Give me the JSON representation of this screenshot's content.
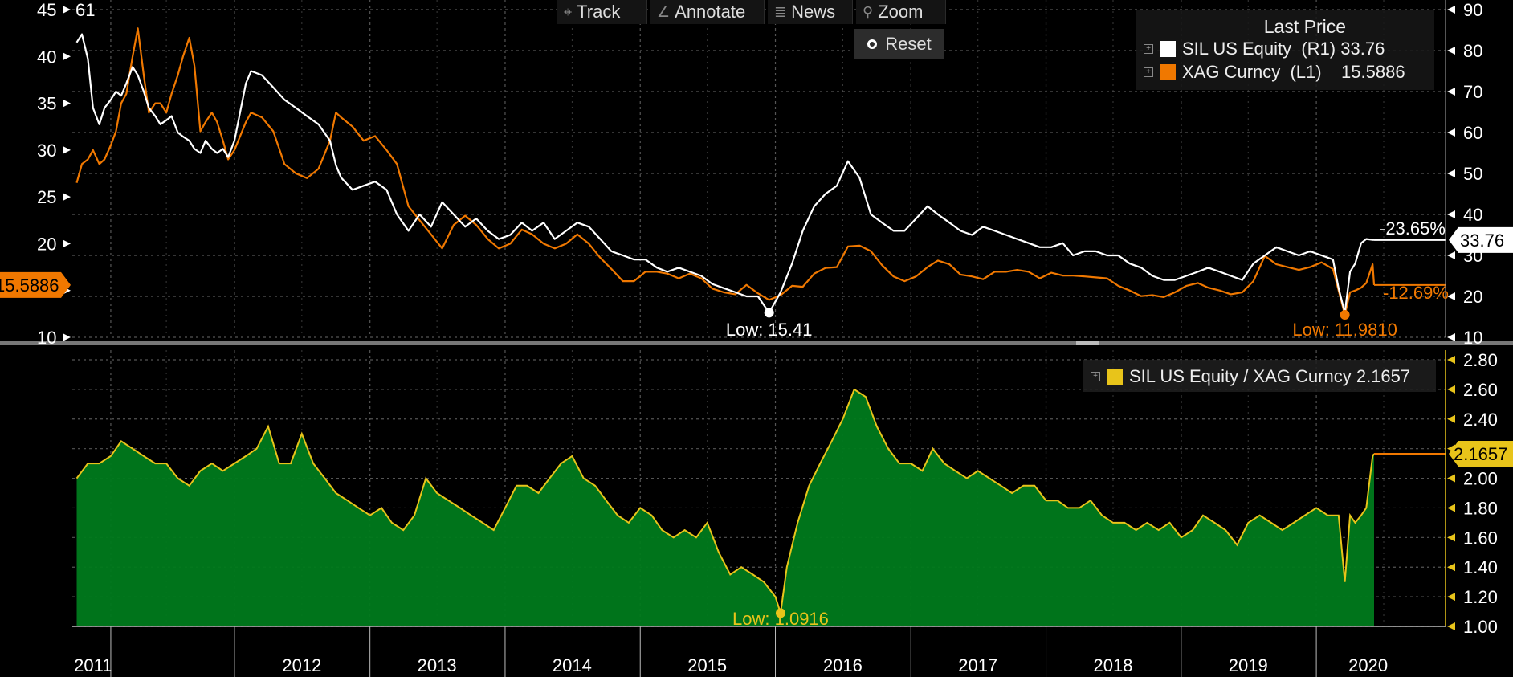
{
  "toolbar": {
    "track": "Track",
    "annotate": "Annotate",
    "news": "News",
    "zoom": "Zoom",
    "reset": "Reset"
  },
  "legend_top": {
    "header": "Last Price",
    "sil": "SIL US Equity  (R1) 33.76",
    "xag": "XAG Curncy  (L1)    15.5886"
  },
  "legend_bottom": {
    "ratio": "SIL US Equity / XAG Curncy 2.1657"
  },
  "colors": {
    "sil": "#ffffff",
    "xag": "#f07800",
    "ratio_line": "#e8c41a",
    "ratio_fill": "#007a1c",
    "grid": "#555555"
  },
  "chart_data": [
    {
      "type": "line",
      "x": [
        "2010-11-01",
        "2010-11-15",
        "2010-12-01",
        "2010-12-15",
        "2011-01-01",
        "2011-01-15",
        "2011-02-01",
        "2011-02-15",
        "2011-03-01",
        "2011-03-15",
        "2011-04-01",
        "2011-04-15",
        "2011-05-01",
        "2011-05-15",
        "2011-06-01",
        "2011-06-15",
        "2011-07-01",
        "2011-07-15",
        "2011-08-01",
        "2011-08-15",
        "2011-09-01",
        "2011-09-15",
        "2011-10-01",
        "2011-10-15",
        "2011-11-01",
        "2011-11-15",
        "2011-12-01",
        "2011-12-15",
        "2012-01-01",
        "2012-02-01",
        "2012-02-15",
        "2012-03-15",
        "2012-04-15",
        "2012-05-15",
        "2012-06-15",
        "2012-07-15",
        "2012-08-15",
        "2012-09-15",
        "2012-10-01",
        "2012-10-15",
        "2012-11-15",
        "2012-12-15",
        "2013-01-15",
        "2013-02-15",
        "2013-03-15",
        "2013-04-15",
        "2013-05-15",
        "2013-06-15",
        "2013-07-15",
        "2013-08-15",
        "2013-09-15",
        "2013-10-15",
        "2013-11-15",
        "2013-12-15",
        "2014-01-15",
        "2014-02-15",
        "2014-03-15",
        "2014-04-15",
        "2014-05-15",
        "2014-06-15",
        "2014-07-15",
        "2014-08-15",
        "2014-09-15",
        "2014-10-15",
        "2014-11-15",
        "2014-12-15",
        "2015-01-15",
        "2015-02-15",
        "2015-03-15",
        "2015-04-15",
        "2015-05-15",
        "2015-06-15",
        "2015-07-15",
        "2015-08-15",
        "2015-09-15",
        "2015-10-15",
        "2015-11-15",
        "2015-12-15",
        "2016-01-15",
        "2016-02-15",
        "2016-03-15",
        "2016-04-15",
        "2016-05-15",
        "2016-06-15",
        "2016-07-15",
        "2016-08-15",
        "2016-09-15",
        "2016-10-15",
        "2016-11-15",
        "2016-12-15",
        "2017-01-15",
        "2017-02-15",
        "2017-03-15",
        "2017-04-15",
        "2017-05-15",
        "2017-06-15",
        "2017-07-15",
        "2017-08-15",
        "2017-09-15",
        "2017-10-15",
        "2017-11-15",
        "2017-12-15",
        "2018-01-15",
        "2018-02-15",
        "2018-03-15",
        "2018-04-15",
        "2018-05-15",
        "2018-06-15",
        "2018-07-15",
        "2018-08-15",
        "2018-09-15",
        "2018-10-15",
        "2018-11-15",
        "2018-12-15",
        "2019-01-15",
        "2019-02-15",
        "2019-03-15",
        "2019-04-15",
        "2019-05-15",
        "2019-06-15",
        "2019-07-15",
        "2019-08-15",
        "2019-09-15",
        "2019-10-15",
        "2019-11-15",
        "2019-12-15",
        "2020-01-15",
        "2020-02-15",
        "2020-03-01",
        "2020-03-18",
        "2020-04-01",
        "2020-04-15",
        "2020-05-01",
        "2020-05-15",
        "2020-06-01",
        "2020-06-05"
      ],
      "series": [
        {
          "name": "SIL US Equity",
          "axis": "right",
          "values": [
            82,
            84,
            78,
            66,
            62,
            66,
            68,
            70,
            69,
            72,
            76,
            74,
            70,
            66,
            64,
            62,
            63,
            64,
            60,
            59,
            58,
            56,
            55,
            58,
            56,
            55,
            56,
            54,
            58,
            72,
            75,
            74,
            71,
            68,
            66,
            64,
            62,
            58,
            52,
            49,
            46,
            47,
            48,
            46,
            40,
            36,
            40,
            37,
            43,
            40,
            37,
            39,
            36,
            34,
            35,
            38,
            36,
            38,
            34,
            36,
            38,
            37,
            34,
            31,
            30,
            29,
            29,
            27,
            26,
            27,
            26,
            25,
            23,
            22,
            21,
            20,
            20,
            16,
            21,
            28,
            36,
            42,
            45,
            47,
            53,
            49,
            40,
            38,
            36,
            36,
            39,
            42,
            40,
            38,
            36,
            35,
            37,
            36,
            35,
            34,
            33,
            32,
            32,
            33,
            30,
            31,
            31,
            30,
            30,
            28,
            27,
            25,
            24,
            24,
            25,
            26,
            27,
            26,
            25,
            24,
            28,
            30,
            32,
            31,
            30,
            31,
            30,
            29,
            22,
            16,
            26,
            28,
            33,
            34,
            33.8,
            33.76
          ]
        },
        {
          "name": "XAG Curncy",
          "axis": "left",
          "values": [
            26.5,
            28.5,
            29,
            30,
            28.5,
            29,
            30.5,
            32,
            35,
            36,
            40,
            43,
            38,
            34,
            35,
            35,
            34,
            36,
            38,
            40,
            42,
            39,
            32,
            33,
            34,
            33,
            31,
            29,
            30,
            33,
            34,
            33.5,
            32,
            28.5,
            27.5,
            27,
            28,
            31,
            34,
            33.5,
            32.5,
            31,
            31.5,
            30,
            28.5,
            24,
            22.5,
            21,
            19.5,
            22,
            23,
            22,
            20.5,
            19.5,
            20,
            21.5,
            21,
            20,
            19.5,
            20,
            21,
            20,
            18.5,
            17.3,
            16,
            16,
            17,
            17,
            16.8,
            16.3,
            16.8,
            16.3,
            15.2,
            14.8,
            14.6,
            15.6,
            14.7,
            14,
            14.5,
            15.5,
            15.4,
            16.8,
            17.4,
            17.5,
            19.7,
            19.8,
            19.2,
            17.7,
            16.5,
            16,
            16.5,
            17.5,
            18.2,
            17.8,
            16.7,
            16.5,
            16.2,
            17,
            17,
            17.2,
            17,
            16.3,
            16.9,
            16.6,
            16.6,
            16.5,
            16.4,
            16.3,
            15.5,
            15,
            14.4,
            14.5,
            14.3,
            14.8,
            15.5,
            15.8,
            15.3,
            15,
            14.6,
            14.8,
            16,
            18.7,
            17.8,
            17.5,
            17.2,
            17.5,
            18,
            17.3,
            15,
            12.4,
            14.8,
            15,
            15.3,
            15.8,
            17.8,
            15.5886
          ]
        }
      ],
      "ylim_left": [
        10,
        45
      ],
      "ylim_right": [
        10,
        90
      ],
      "left_ticks": [
        10,
        15,
        20,
        25,
        30,
        35,
        40,
        45
      ],
      "right_ticks": [
        10,
        20,
        30,
        40,
        50,
        60,
        70,
        80,
        90
      ],
      "x_labels": [
        "2011",
        "2012",
        "2013",
        "2014",
        "2015",
        "2016",
        "2017",
        "2018",
        "2019",
        "2020"
      ],
      "annotations": {
        "low_sil": "Low: 15.41",
        "low_xag": "Low: 11.9810",
        "pct_sil": "-23.65%",
        "pct_xag": "-12.69%",
        "last_sil": "33.76",
        "last_xag": "15.5886",
        "top_left": "61"
      },
      "grid": true,
      "legend": "top-right"
    },
    {
      "type": "area",
      "x": [
        "2010-11-01",
        "2010-12-01",
        "2011-01-01",
        "2011-02-01",
        "2011-03-01",
        "2011-04-01",
        "2011-05-01",
        "2011-06-01",
        "2011-07-01",
        "2011-08-01",
        "2011-09-01",
        "2011-10-01",
        "2011-11-01",
        "2011-12-01",
        "2012-01-01",
        "2012-02-01",
        "2012-03-01",
        "2012-04-01",
        "2012-05-01",
        "2012-06-01",
        "2012-07-01",
        "2012-08-01",
        "2012-09-01",
        "2012-10-01",
        "2012-11-01",
        "2012-12-01",
        "2013-01-01",
        "2013-02-01",
        "2013-03-01",
        "2013-04-01",
        "2013-05-01",
        "2013-06-01",
        "2013-07-01",
        "2013-08-01",
        "2013-09-01",
        "2013-10-01",
        "2013-11-01",
        "2013-12-01",
        "2014-01-01",
        "2014-02-01",
        "2014-03-01",
        "2014-04-01",
        "2014-05-01",
        "2014-06-01",
        "2014-07-01",
        "2014-08-01",
        "2014-09-01",
        "2014-10-01",
        "2014-11-01",
        "2014-12-01",
        "2015-01-01",
        "2015-02-01",
        "2015-03-01",
        "2015-04-01",
        "2015-05-01",
        "2015-06-01",
        "2015-07-01",
        "2015-08-01",
        "2015-09-01",
        "2015-10-01",
        "2015-11-01",
        "2015-12-01",
        "2016-01-01",
        "2016-01-15",
        "2016-02-01",
        "2016-03-01",
        "2016-04-01",
        "2016-05-01",
        "2016-06-01",
        "2016-07-01",
        "2016-08-01",
        "2016-09-01",
        "2016-10-01",
        "2016-11-01",
        "2016-12-01",
        "2017-01-01",
        "2017-02-01",
        "2017-03-01",
        "2017-04-01",
        "2017-05-01",
        "2017-06-01",
        "2017-07-01",
        "2017-08-01",
        "2017-09-01",
        "2017-10-01",
        "2017-11-01",
        "2017-12-01",
        "2018-01-01",
        "2018-02-01",
        "2018-03-01",
        "2018-04-01",
        "2018-05-01",
        "2018-06-01",
        "2018-07-01",
        "2018-08-01",
        "2018-09-01",
        "2018-10-01",
        "2018-11-01",
        "2018-12-01",
        "2019-01-01",
        "2019-02-01",
        "2019-03-01",
        "2019-04-01",
        "2019-05-01",
        "2019-06-01",
        "2019-07-01",
        "2019-08-01",
        "2019-09-01",
        "2019-10-01",
        "2019-11-01",
        "2019-12-01",
        "2020-01-01",
        "2020-02-01",
        "2020-03-01",
        "2020-03-18",
        "2020-04-01",
        "2020-04-15",
        "2020-05-01",
        "2020-05-15",
        "2020-06-01",
        "2020-06-05"
      ],
      "series": [
        {
          "name": "SIL US Equity / XAG Curncy",
          "values": [
            2.0,
            2.1,
            2.1,
            2.15,
            2.25,
            2.2,
            2.15,
            2.1,
            2.1,
            2.0,
            1.95,
            2.05,
            2.1,
            2.05,
            2.1,
            2.15,
            2.2,
            2.35,
            2.1,
            2.1,
            2.3,
            2.1,
            2.0,
            1.9,
            1.85,
            1.8,
            1.75,
            1.8,
            1.7,
            1.65,
            1.75,
            2.0,
            1.9,
            1.85,
            1.8,
            1.75,
            1.7,
            1.65,
            1.8,
            1.95,
            1.95,
            1.9,
            2.0,
            2.1,
            2.15,
            2.0,
            1.95,
            1.85,
            1.75,
            1.7,
            1.8,
            1.75,
            1.65,
            1.6,
            1.65,
            1.6,
            1.7,
            1.5,
            1.35,
            1.4,
            1.35,
            1.3,
            1.2,
            1.09,
            1.4,
            1.7,
            1.95,
            2.1,
            2.25,
            2.4,
            2.6,
            2.55,
            2.35,
            2.2,
            2.1,
            2.1,
            2.05,
            2.2,
            2.1,
            2.05,
            2.0,
            2.05,
            2.0,
            1.95,
            1.9,
            1.95,
            1.95,
            1.85,
            1.85,
            1.8,
            1.8,
            1.85,
            1.75,
            1.7,
            1.7,
            1.65,
            1.7,
            1.65,
            1.7,
            1.6,
            1.65,
            1.75,
            1.7,
            1.65,
            1.55,
            1.7,
            1.75,
            1.7,
            1.65,
            1.7,
            1.75,
            1.8,
            1.75,
            1.75,
            1.3,
            1.75,
            1.7,
            1.75,
            1.8,
            2.15,
            2.1657
          ]
        }
      ],
      "ylim": [
        1.0,
        2.8
      ],
      "ticks": [
        1.0,
        1.2,
        1.4,
        1.6,
        1.8,
        2.0,
        2.2,
        2.4,
        2.6,
        2.8
      ],
      "tick_labels": [
        "1.00",
        "1.20",
        "1.40",
        "1.60",
        "1.80",
        "2.00",
        "2.20",
        "2.40",
        "2.60",
        "2.80"
      ],
      "annotations": {
        "low": "Low: 1.0916",
        "last": "2.1657"
      },
      "grid": true,
      "legend": "top-right"
    }
  ]
}
